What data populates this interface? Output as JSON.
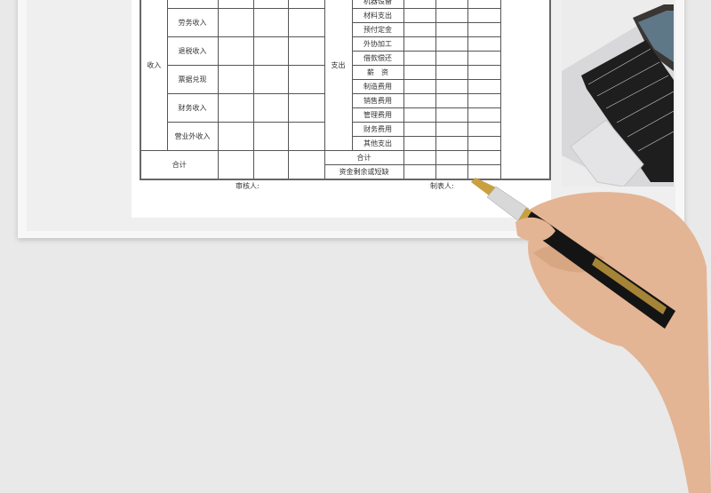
{
  "sheet": {
    "income_label": "收入",
    "income_items": [
      "",
      "劳务收入",
      "退税收入",
      "票据兑现",
      "财务收入",
      "营业外收入"
    ],
    "expense_label": "支出",
    "expense_items": [
      "",
      "机器设备",
      "材料支出",
      "预付定金",
      "外协加工",
      "借款偿还",
      "薪　资",
      "制造费用",
      "销售费用",
      "管理费用",
      "财务费用",
      "其他支出"
    ],
    "income_total": "合计",
    "expense_total": "合计",
    "balance": "资金剩余或短缺"
  },
  "signatures": {
    "reviewer": "审核人:",
    "preparer": "制表人:"
  },
  "colors": {
    "background": "#e9e9e9",
    "skin": "#e3b594",
    "pen_body": "#141414",
    "pen_trim": "#c9a040"
  }
}
